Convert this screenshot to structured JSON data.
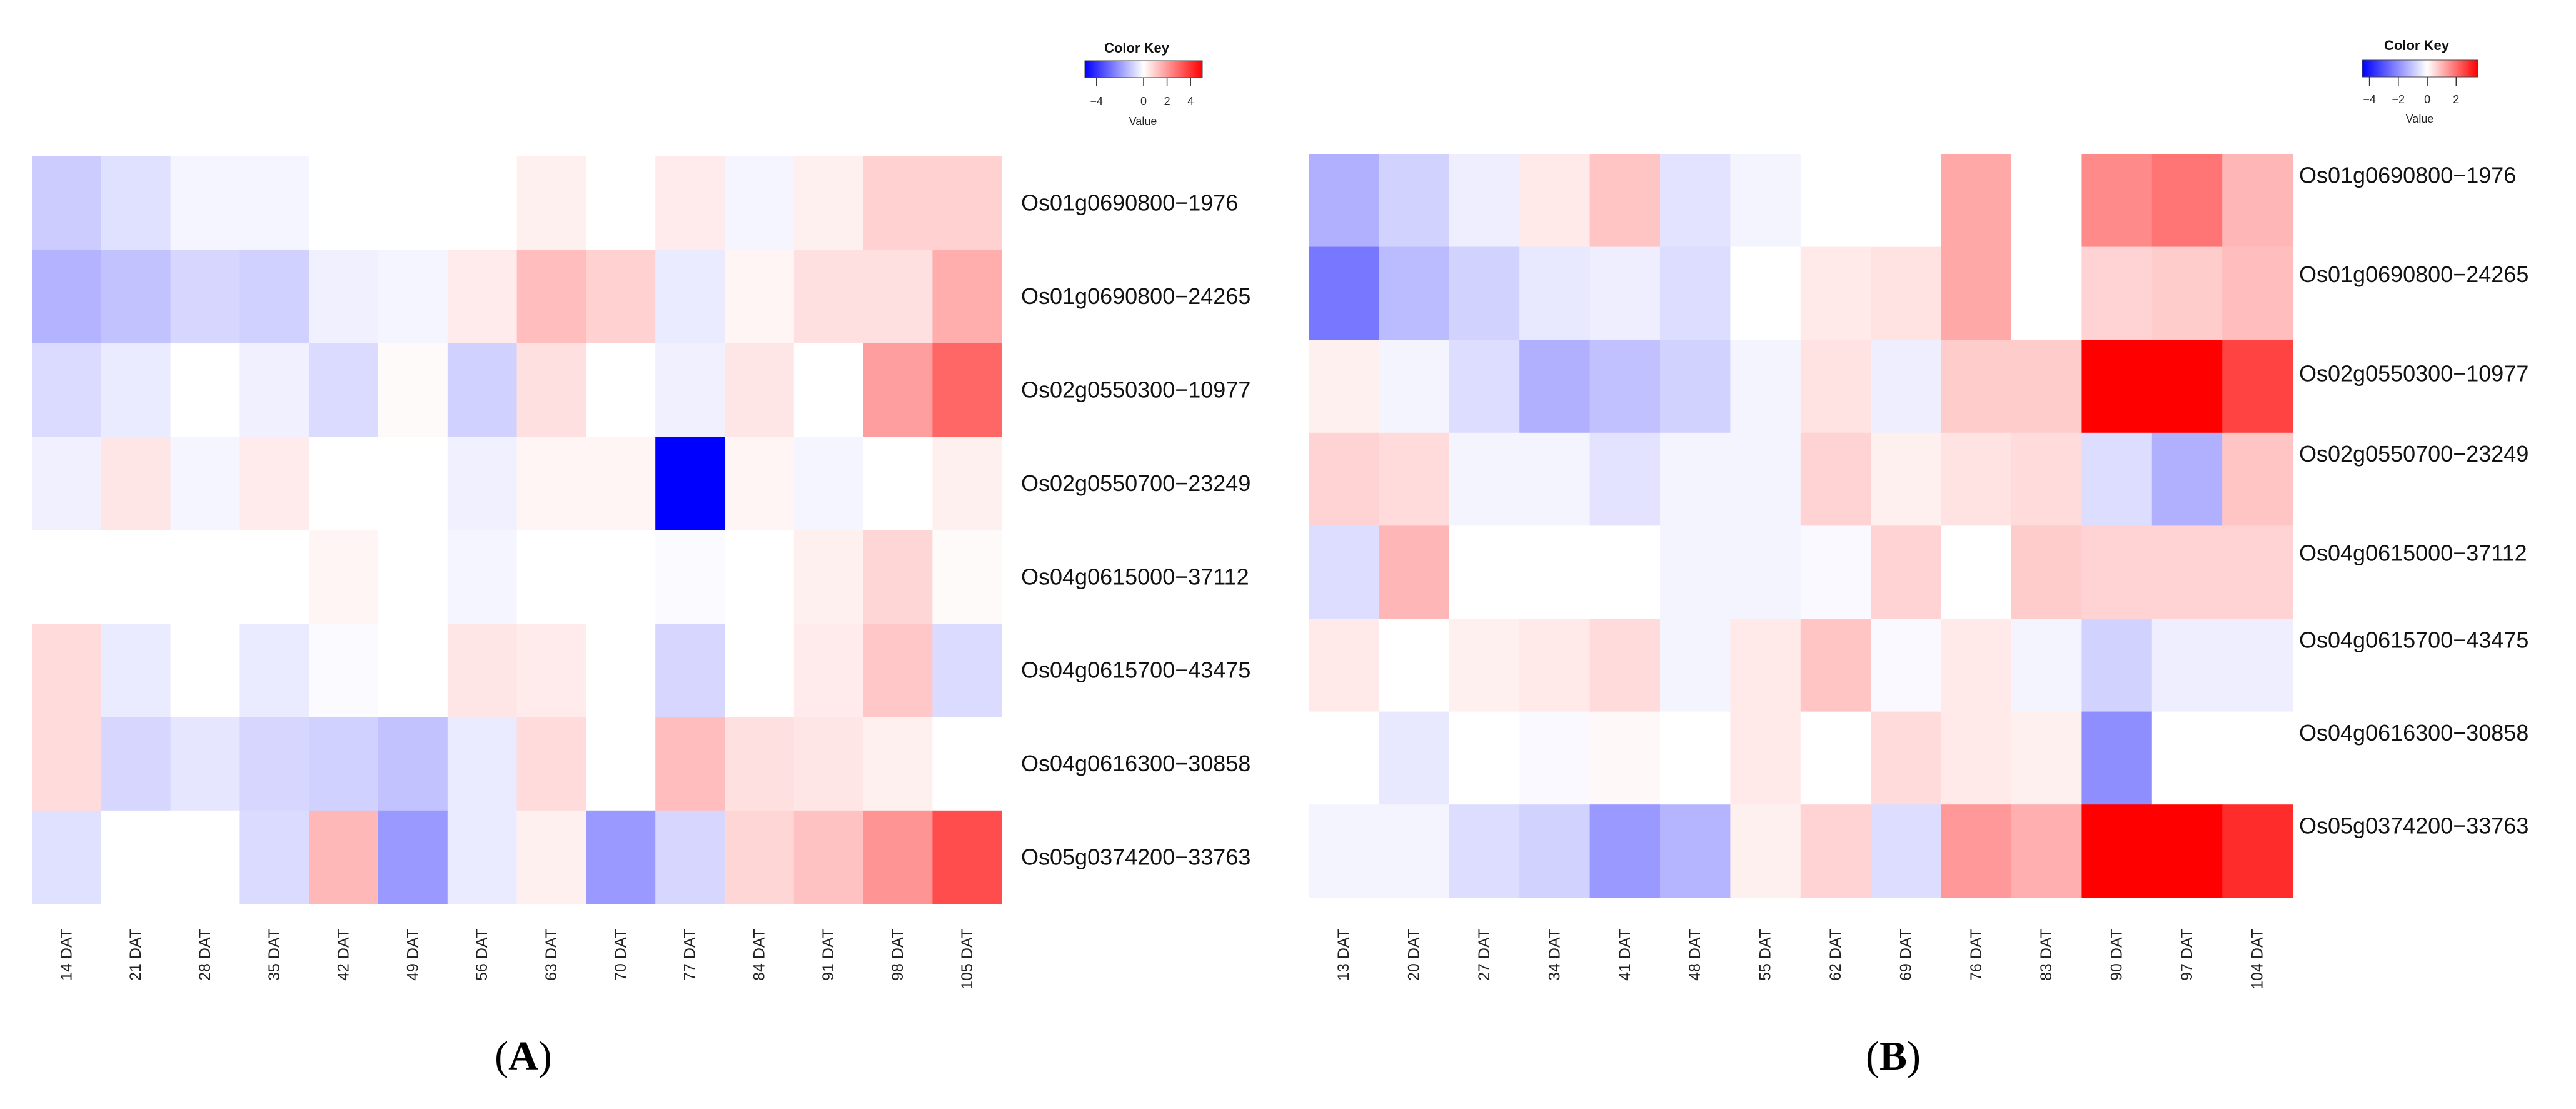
{
  "chart_data": [
    {
      "type": "heatmap",
      "panel_label": "A",
      "color_key": {
        "title": "Color Key",
        "xlabel": "Value",
        "ticks": [
          "−4",
          "0",
          "2",
          "4"
        ],
        "range": [
          -5,
          5
        ],
        "low_color": "#0000ff",
        "mid_color": "#ffffff",
        "high_color": "#ff0000"
      },
      "columns": [
        "14 DAT",
        "21 DAT",
        "28 DAT",
        "35 DAT",
        "42 DAT",
        "49 DAT",
        "56 DAT",
        "63 DAT",
        "70 DAT",
        "77 DAT",
        "84 DAT",
        "91 DAT",
        "98 DAT",
        "105 DAT"
      ],
      "rows": [
        "Os01g0690800−1976",
        "Os01g0690800−24265",
        "Os02g0550300−10977",
        "Os02g0550700−23249",
        "Os04g0615000−37112",
        "Os04g0615700−43475",
        "Os04g0616300−30858",
        "Os05g0374200−33763"
      ],
      "values": [
        [
          -1.0,
          -0.6,
          -0.2,
          -0.2,
          0.0,
          0.0,
          0.0,
          0.3,
          0.0,
          0.4,
          -0.2,
          0.3,
          0.9,
          0.9
        ],
        [
          -1.5,
          -1.2,
          -0.8,
          -0.9,
          -0.3,
          -0.2,
          0.4,
          1.3,
          0.9,
          -0.4,
          0.2,
          0.6,
          0.6,
          1.6
        ],
        [
          -0.7,
          -0.4,
          0.0,
          -0.3,
          -0.7,
          0.1,
          -0.9,
          0.6,
          0.0,
          -0.3,
          0.5,
          0.0,
          1.9,
          3.0
        ],
        [
          -0.3,
          0.5,
          -0.2,
          0.4,
          0.0,
          0.0,
          -0.3,
          0.2,
          0.2,
          -5.0,
          0.2,
          -0.2,
          0.0,
          0.3
        ],
        [
          0.0,
          0.0,
          0.0,
          0.0,
          0.2,
          0.0,
          -0.2,
          0.0,
          0.0,
          -0.1,
          0.0,
          0.3,
          0.8,
          0.1
        ],
        [
          0.7,
          -0.4,
          0.0,
          -0.4,
          -0.1,
          0.0,
          0.5,
          0.4,
          0.0,
          -0.8,
          0.0,
          0.4,
          1.1,
          -0.7
        ],
        [
          0.7,
          -0.8,
          -0.5,
          -0.8,
          -0.9,
          -1.2,
          -0.4,
          0.7,
          0.0,
          1.3,
          0.6,
          0.5,
          0.3,
          0.0
        ],
        [
          -0.6,
          0.0,
          0.0,
          -0.7,
          1.4,
          -2.0,
          -0.4,
          0.3,
          -2.0,
          -0.8,
          0.8,
          1.2,
          2.1,
          3.5
        ]
      ]
    },
    {
      "type": "heatmap",
      "panel_label": "B",
      "color_key": {
        "title": "Color Key",
        "xlabel": "Value",
        "ticks": [
          "−4",
          "−2",
          "0",
          "2"
        ],
        "range": [
          -4.5,
          3.5
        ],
        "low_color": "#0000ff",
        "mid_color": "#ffffff",
        "high_color": "#ff0000"
      },
      "columns": [
        "13 DAT",
        "20 DAT",
        "27 DAT",
        "34 DAT",
        "41 DAT",
        "48 DAT",
        "55 DAT",
        "62 DAT",
        "69 DAT",
        "76 DAT",
        "83 DAT",
        "90 DAT",
        "97 DAT",
        "104 DAT"
      ],
      "rows": [
        "Os01g0690800−1976",
        "Os01g0690800−24265",
        "Os02g0550300−10977",
        "Os02g0550700−23249",
        "Os04g0615000−37112",
        "Os04g0615700−43475",
        "Os04g0616300−30858",
        "Os05g0374200−33763"
      ],
      "values": [
        [
          -1.4,
          -0.8,
          -0.3,
          0.3,
          0.8,
          -0.5,
          -0.2,
          0.0,
          0.0,
          1.2,
          0.0,
          1.6,
          1.9,
          1.0
        ],
        [
          -2.4,
          -1.2,
          -0.8,
          -0.4,
          -0.3,
          -0.6,
          0.0,
          0.3,
          0.4,
          1.2,
          0.0,
          0.6,
          0.7,
          0.9
        ],
        [
          0.2,
          -0.2,
          -0.6,
          -1.4,
          -1.1,
          -0.8,
          -0.2,
          0.4,
          -0.3,
          0.7,
          0.7,
          3.5,
          3.5,
          2.6
        ],
        [
          0.6,
          0.5,
          -0.2,
          -0.2,
          -0.5,
          -0.2,
          -0.2,
          0.6,
          0.2,
          0.4,
          0.5,
          -0.6,
          -1.4,
          0.8
        ],
        [
          -0.6,
          1.0,
          0.0,
          0.0,
          0.0,
          -0.2,
          -0.2,
          -0.1,
          0.6,
          0.0,
          0.7,
          0.6,
          0.6,
          0.6
        ],
        [
          0.3,
          0.0,
          0.2,
          0.3,
          0.5,
          -0.2,
          0.3,
          0.8,
          -0.1,
          0.3,
          -0.2,
          -0.8,
          -0.3,
          -0.3
        ],
        [
          0.0,
          -0.4,
          0.0,
          -0.1,
          0.1,
          0.0,
          0.3,
          0.0,
          0.5,
          0.3,
          0.2,
          -2.0,
          0.0,
          0.0
        ],
        [
          -0.2,
          -0.2,
          -0.6,
          -0.8,
          -1.8,
          -1.3,
          0.2,
          0.6,
          -0.6,
          1.4,
          1.1,
          3.5,
          3.5,
          2.9
        ]
      ]
    }
  ]
}
